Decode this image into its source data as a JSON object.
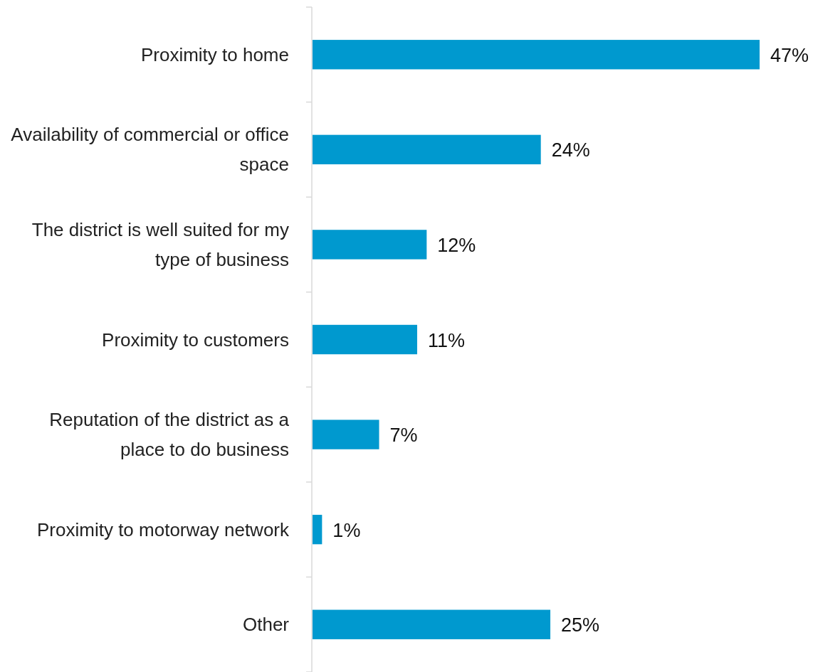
{
  "chart_data": {
    "type": "bar",
    "orientation": "horizontal",
    "categories": [
      "Proximity to home",
      "Availability of commercial or office space",
      "The district is well suited for my type of business",
      "Proximity to customers",
      "Reputation of the district as a place to do business",
      "Proximity to motorway network",
      "Other"
    ],
    "values": [
      47,
      24,
      12,
      11,
      7,
      1,
      25
    ],
    "value_labels": [
      "47%",
      "24%",
      "12%",
      "11%",
      "7%",
      "1%",
      "25%"
    ],
    "color": "#0099cf"
  }
}
